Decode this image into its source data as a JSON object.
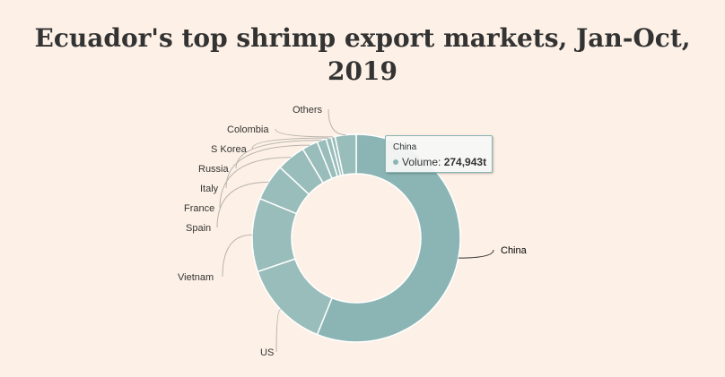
{
  "title_line1": "Ecuador's top shrimp export markets, Jan-Oct,",
  "title_line2": "2019",
  "colors": {
    "slice": "#8bb5b4",
    "background": "#fdf1e7"
  },
  "tooltip": {
    "category": "China",
    "series_name": "Volume",
    "value_text": "274,943t"
  },
  "chart_data": {
    "type": "pie",
    "donut": true,
    "categories": [
      "China",
      "US",
      "Vietnam",
      "Spain",
      "France",
      "Italy",
      "Russia",
      "S Korea",
      "Colombia",
      "Others"
    ],
    "series": [
      {
        "name": "Volume",
        "values": [
          274943,
          67000,
          56000,
          28000,
          22000,
          12000,
          7000,
          4000,
          3000,
          16000
        ]
      }
    ],
    "legend": false
  }
}
